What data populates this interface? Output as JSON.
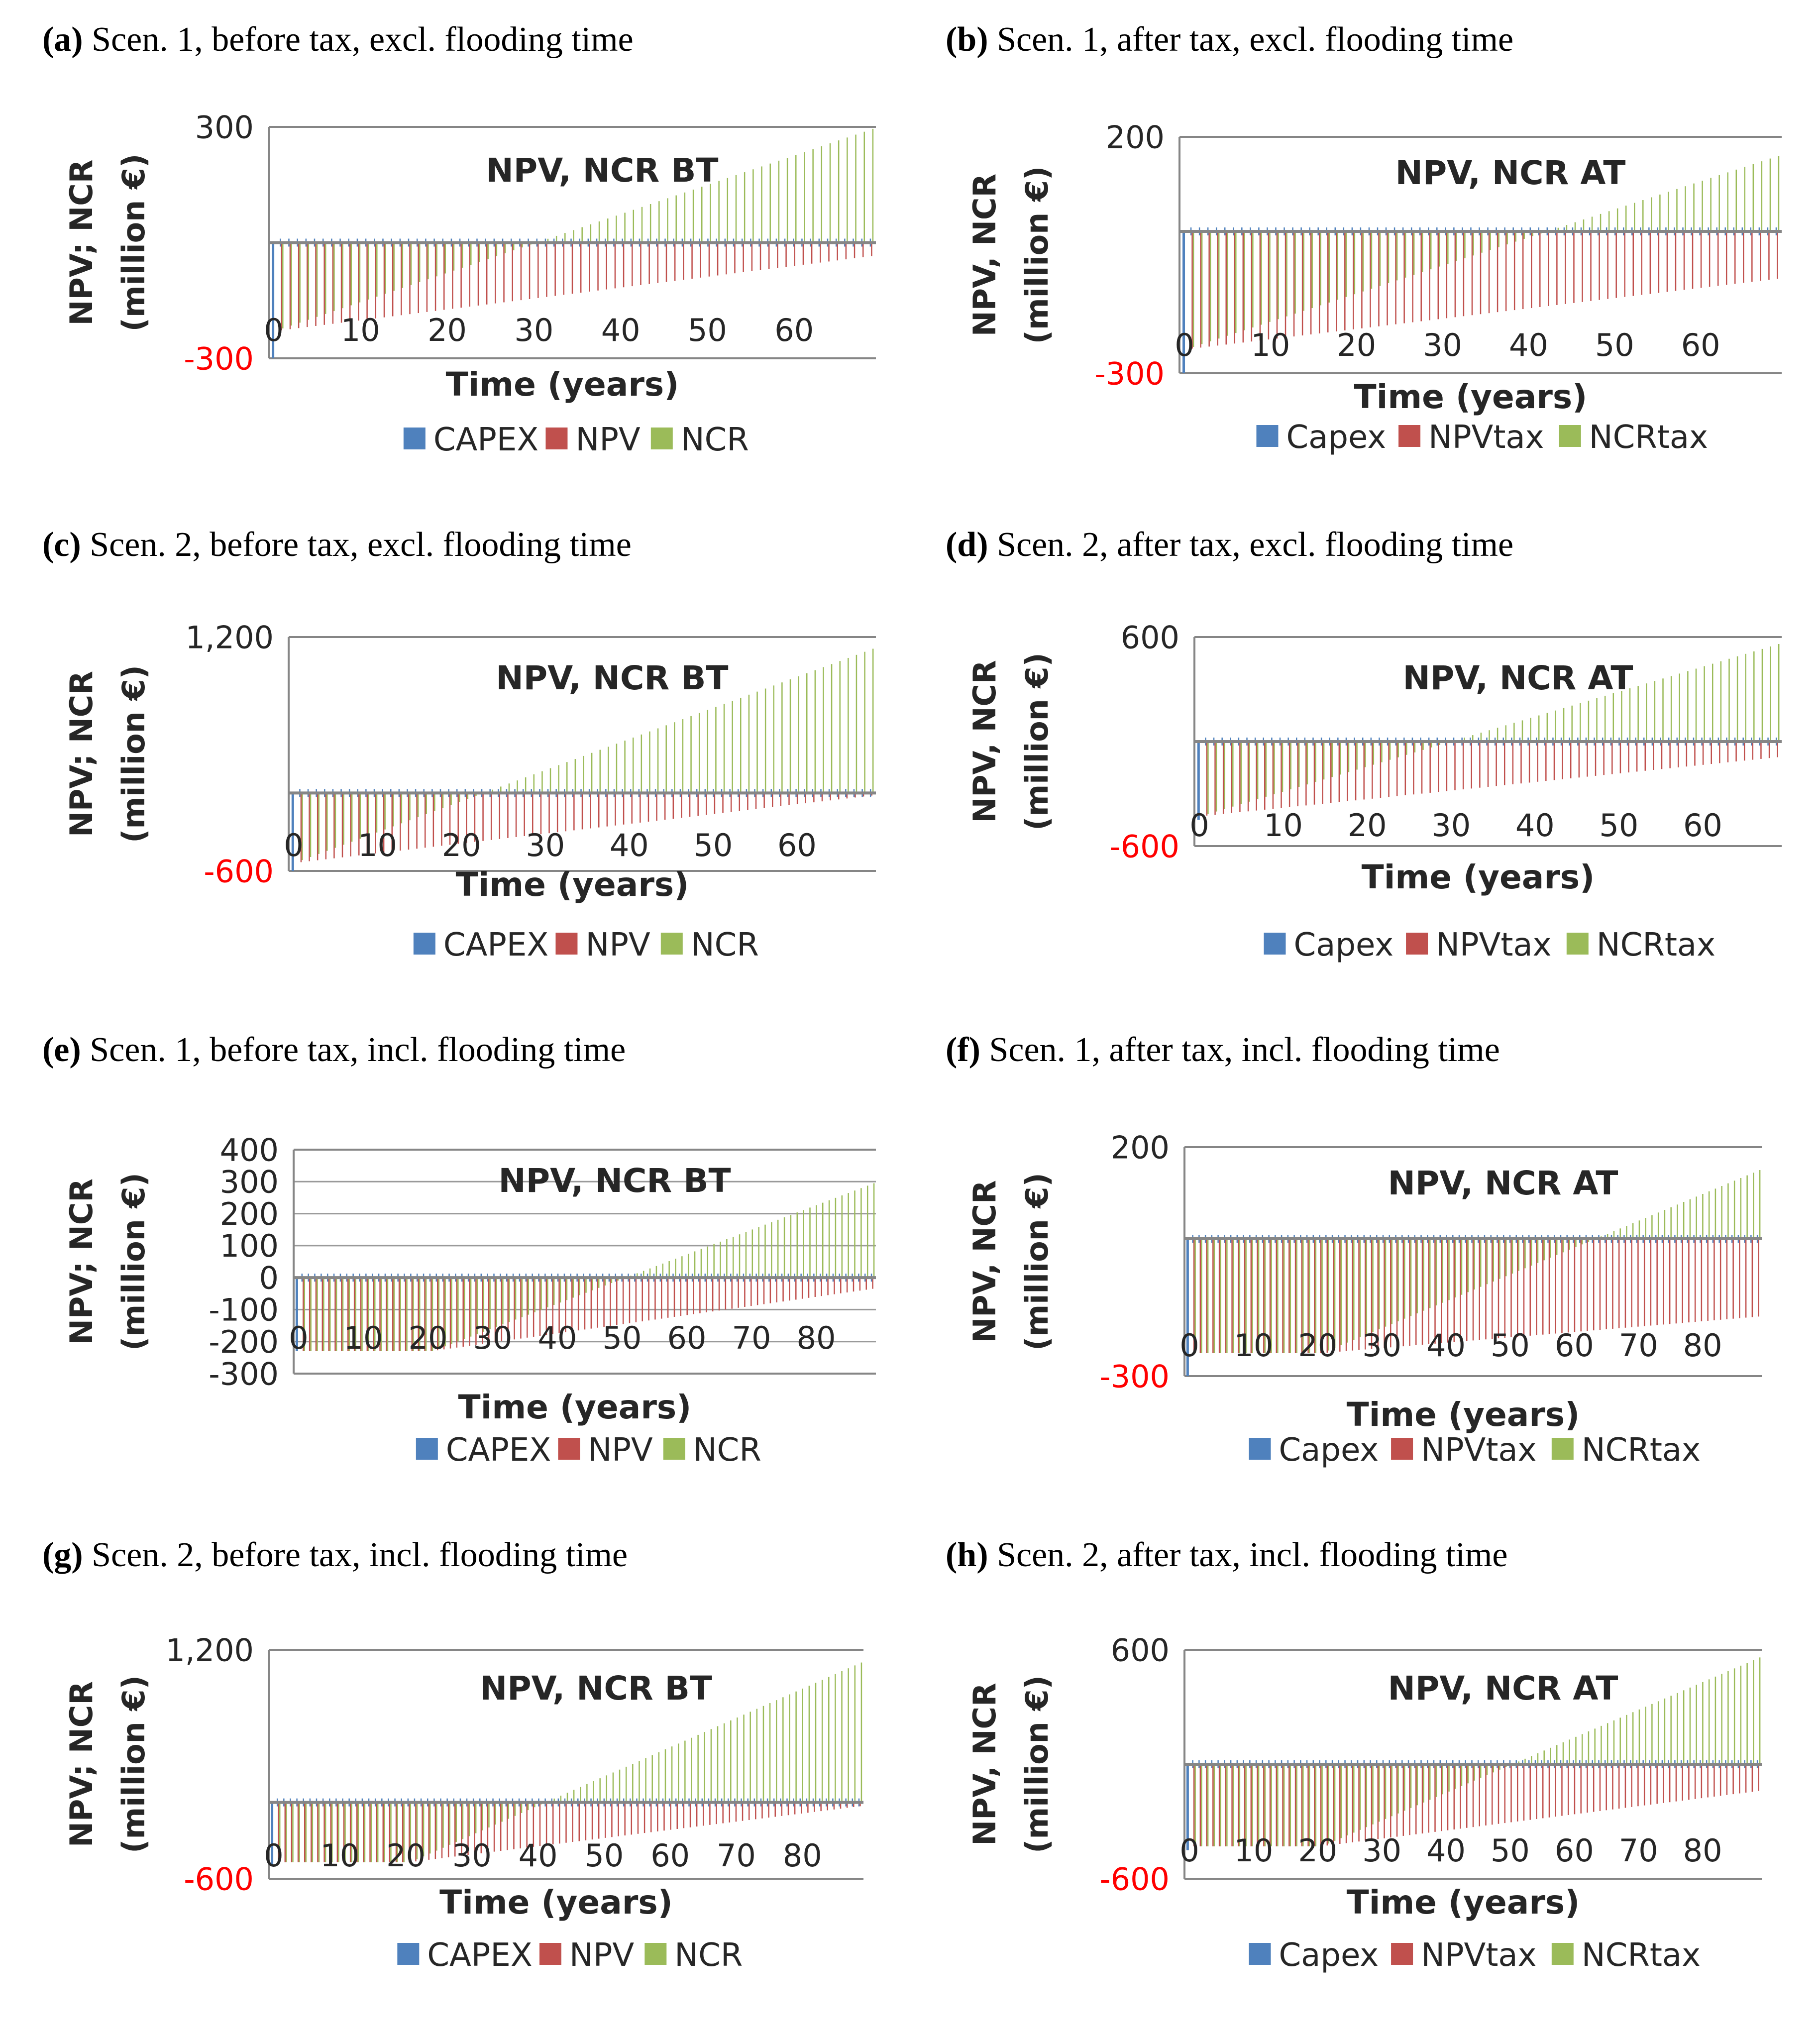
{
  "colors": {
    "capex": "#4f81bd",
    "npv": "#c0504d",
    "ncr": "#9bbb59",
    "axis_line": "#868686",
    "grid": "#9a9a9a",
    "negative_tick": "#ff0000",
    "text": "#262626"
  },
  "chart_data": [
    {
      "id": "a",
      "type": "bar",
      "panel_label": "(a)",
      "panel_title": "Scen. 1, before tax, excl. flooding time",
      "title": "NPV, NCR BT",
      "xlabel": "Time (years)",
      "ylabel_lines": [
        "NPV; NCR",
        "(million €)"
      ],
      "ylim": [
        -300,
        300
      ],
      "y_ticks": [
        300,
        -300
      ],
      "y_tick_labels": [
        "300",
        "-300"
      ],
      "x_ticks": [
        0,
        10,
        20,
        30,
        40,
        50,
        60
      ],
      "x_tick_labels": [
        "0",
        "10",
        "20",
        "30",
        "40",
        "50",
        "60"
      ],
      "xlim": [
        0,
        70
      ],
      "baseline": 0,
      "gridlines": false,
      "legend": [
        "CAPEX",
        "NPV",
        "NCR"
      ],
      "series": [
        {
          "name": "CAPEX",
          "value_at_year_0": -300
        },
        {
          "name": "NPV",
          "values_by_year": "rises from -230 at year 1 to -35 at year 70",
          "start": -230,
          "end": -35
        },
        {
          "name": "NCR",
          "values_by_year": "rises from -230 at year 1 to 295 at year 70, crossing zero near year 31",
          "start": -230,
          "end": 295
        }
      ]
    },
    {
      "id": "b",
      "type": "bar",
      "panel_label": "(b)",
      "panel_title": "Scen. 1, after tax, excl. flooding time",
      "title": "NPV, NCR AT",
      "xlabel": "Time (years)",
      "ylabel_lines": [
        "NPV, NCR",
        "(million €)"
      ],
      "ylim": [
        -300,
        200
      ],
      "y_ticks": [
        200,
        -300
      ],
      "y_tick_labels": [
        "200",
        "-300"
      ],
      "x_ticks": [
        0,
        10,
        20,
        30,
        40,
        50,
        60
      ],
      "x_tick_labels": [
        "0",
        "10",
        "20",
        "30",
        "40",
        "50",
        "60"
      ],
      "xlim": [
        0,
        70
      ],
      "baseline": 0,
      "gridlines": false,
      "legend": [
        "Capex",
        "NPVtax",
        "NCRtax"
      ],
      "series": [
        {
          "name": "Capex",
          "value_at_year_0": -300
        },
        {
          "name": "NPVtax",
          "start": -250,
          "end": -100
        },
        {
          "name": "NCRtax",
          "start": -250,
          "end": 160
        }
      ]
    },
    {
      "id": "c",
      "type": "bar",
      "panel_label": "(c)",
      "panel_title": "Scen. 2, before tax, excl. flooding time",
      "title": "NPV, NCR BT",
      "xlabel": "Time (years)",
      "ylabel_lines": [
        "NPV; NCR",
        "(million €)"
      ],
      "ylim": [
        -600,
        1200
      ],
      "y_ticks": [
        1200,
        -600
      ],
      "y_tick_labels": [
        "1,200",
        "-600"
      ],
      "x_ticks": [
        0,
        10,
        20,
        30,
        40,
        50,
        60
      ],
      "x_tick_labels": [
        "0",
        "10",
        "20",
        "30",
        "40",
        "50",
        "60"
      ],
      "xlim": [
        0,
        70
      ],
      "baseline": 0,
      "gridlines": false,
      "legend": [
        "CAPEX",
        "NPV",
        "NCR"
      ],
      "series": [
        {
          "name": "CAPEX",
          "value_at_year_0": -600
        },
        {
          "name": "NPV",
          "start": -540,
          "end": -20
        },
        {
          "name": "NCR",
          "start": -540,
          "end": 1110
        }
      ]
    },
    {
      "id": "d",
      "type": "bar",
      "panel_label": "(d)",
      "panel_title": "Scen. 2, after tax, excl. flooding time",
      "title": "NPV, NCR AT",
      "xlabel": "Time (years)",
      "ylabel_lines": [
        "NPV, NCR",
        "(million €)"
      ],
      "ylim": [
        -600,
        600
      ],
      "y_ticks": [
        600,
        -600
      ],
      "y_tick_labels": [
        "600",
        "-600"
      ],
      "x_ticks": [
        0,
        10,
        20,
        30,
        40,
        50,
        60
      ],
      "x_tick_labels": [
        "0",
        "10",
        "20",
        "30",
        "40",
        "50",
        "60"
      ],
      "xlim": [
        0,
        70
      ],
      "baseline": 0,
      "gridlines": false,
      "legend": [
        "Capex",
        "NPVtax",
        "NCRtax"
      ],
      "series": [
        {
          "name": "Capex",
          "value_at_year_0": -450
        },
        {
          "name": "NPVtax",
          "start": -430,
          "end": -90
        },
        {
          "name": "NCRtax",
          "start": -430,
          "end": 560
        }
      ]
    },
    {
      "id": "e",
      "type": "bar",
      "panel_label": "(e)",
      "panel_title": "Scen. 1, before tax, incl. flooding time",
      "title": "NPV, NCR BT",
      "xlabel": "Time (years)",
      "ylabel_lines": [
        "NPV; NCR",
        "(million €)"
      ],
      "ylim": [
        -300,
        400
      ],
      "y_ticks": [
        400,
        300,
        200,
        100,
        0,
        -100,
        -200,
        -300
      ],
      "y_tick_labels": [
        "400",
        "300",
        "200",
        "100",
        "0",
        "-100",
        "-200",
        "-300"
      ],
      "x_ticks": [
        0,
        10,
        20,
        30,
        40,
        50,
        60,
        70,
        80
      ],
      "x_tick_labels": [
        "0",
        "10",
        "20",
        "30",
        "40",
        "50",
        "60",
        "70",
        "80"
      ],
      "xlim": [
        0,
        90
      ],
      "baseline": 0,
      "gridlines": true,
      "legend": [
        "CAPEX",
        "NPV",
        "NCR"
      ],
      "series": [
        {
          "name": "CAPEX",
          "value_at_year_0": -230
        },
        {
          "name": "NPV",
          "flat_until_year": 21,
          "start": -230,
          "end": -35
        },
        {
          "name": "NCR",
          "flat_until_year": 21,
          "start": -230,
          "end": 295
        }
      ]
    },
    {
      "id": "f",
      "type": "bar",
      "panel_label": "(f)",
      "panel_title": "Scen. 1, after tax, incl. flooding time",
      "title": "NPV, NCR AT",
      "xlabel": "Time (years)",
      "ylabel_lines": [
        "NPV, NCR",
        "(million €)"
      ],
      "ylim": [
        -300,
        200
      ],
      "y_ticks": [
        200,
        -300
      ],
      "y_tick_labels": [
        "200",
        "-300"
      ],
      "x_ticks": [
        0,
        10,
        20,
        30,
        40,
        50,
        60,
        70,
        80
      ],
      "x_tick_labels": [
        "0",
        "10",
        "20",
        "30",
        "40",
        "50",
        "60",
        "70",
        "80"
      ],
      "xlim": [
        0,
        90
      ],
      "baseline": 0,
      "gridlines": false,
      "legend": [
        "Capex",
        "NPVtax",
        "NCRtax"
      ],
      "series": [
        {
          "name": "Capex",
          "value_at_year_0": -300
        },
        {
          "name": "NPVtax",
          "flat_until_year": 21,
          "start": -250,
          "end": -170
        },
        {
          "name": "NCRtax",
          "flat_until_year": 21,
          "start": -250,
          "end": 150
        }
      ]
    },
    {
      "id": "g",
      "type": "bar",
      "panel_label": "(g)",
      "panel_title": "Scen. 2, before tax, incl. flooding time",
      "title": "NPV, NCR BT",
      "xlabel": "Time (years)",
      "ylabel_lines": [
        "NPV; NCR",
        "(million €)"
      ],
      "ylim": [
        -600,
        1200
      ],
      "y_ticks": [
        1200,
        -600
      ],
      "y_tick_labels": [
        "1,200",
        "-600"
      ],
      "x_ticks": [
        0,
        10,
        20,
        30,
        40,
        50,
        60,
        70,
        80
      ],
      "x_tick_labels": [
        "0",
        "10",
        "20",
        "30",
        "40",
        "50",
        "60",
        "70",
        "80"
      ],
      "xlim": [
        0,
        90
      ],
      "baseline": 0,
      "gridlines": false,
      "legend": [
        "CAPEX",
        "NPV",
        "NCR"
      ],
      "series": [
        {
          "name": "CAPEX",
          "value_at_year_0": -500
        },
        {
          "name": "NPV",
          "flat_until_year": 21,
          "start": -470,
          "end": -30
        },
        {
          "name": "NCR",
          "flat_until_year": 21,
          "start": -470,
          "end": 1100
        }
      ]
    },
    {
      "id": "h",
      "type": "bar",
      "panel_label": "(h)",
      "panel_title": "Scen. 2, after tax, incl. flooding time",
      "title": "NPV, NCR AT",
      "xlabel": "Time (years)",
      "ylabel_lines": [
        "NPV, NCR",
        "(million €)"
      ],
      "ylim": [
        -600,
        600
      ],
      "y_ticks": [
        600,
        -600
      ],
      "y_tick_labels": [
        "600",
        "-600"
      ],
      "x_ticks": [
        0,
        10,
        20,
        30,
        40,
        50,
        60,
        70,
        80
      ],
      "x_tick_labels": [
        "0",
        "10",
        "20",
        "30",
        "40",
        "50",
        "60",
        "70",
        "80"
      ],
      "xlim": [
        0,
        90
      ],
      "baseline": 0,
      "gridlines": false,
      "legend": [
        "Capex",
        "NPVtax",
        "NCRtax"
      ],
      "series": [
        {
          "name": "Capex",
          "value_at_year_0": -450
        },
        {
          "name": "NPVtax",
          "flat_until_year": 21,
          "start": -430,
          "end": -140
        },
        {
          "name": "NCRtax",
          "flat_until_year": 21,
          "start": -430,
          "end": 560
        }
      ]
    }
  ]
}
